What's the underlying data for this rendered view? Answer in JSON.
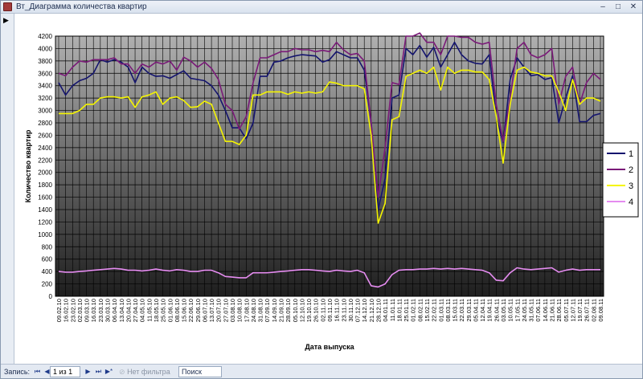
{
  "window": {
    "title": "Вт_Диаграмма количества квартир",
    "minimize_glyph": "–",
    "maximize_glyph": "□",
    "close_glyph": "✕"
  },
  "record_selector": {
    "glyph": "▶"
  },
  "navigation": {
    "record_label": "Запись:",
    "first_glyph": "⏮",
    "prev_glyph": "◀",
    "record_value": "1 из 1",
    "next_glyph": "▶",
    "last_glyph": "⏭",
    "new_glyph": "▶*",
    "filter_label": "Нет фильтра",
    "search_label": "Поиск"
  },
  "colors": {
    "series_1": "#14146e",
    "series_2": "#7a1a78",
    "series_3": "#f5f500",
    "series_4": "#e58cf0",
    "plot_top": "#b0b0b0",
    "plot_bottom": "#1e1e1e"
  },
  "chart_data": {
    "type": "line",
    "title": "",
    "xlabel": "Дата выпуска",
    "ylabel": "Количество квартир",
    "ylim": [
      0,
      4200
    ],
    "y_ticks": [
      "0",
      "200",
      "400",
      "600",
      "800",
      "1000",
      "1200",
      "1400",
      "1600",
      "1800",
      "2000",
      "2200",
      "2400",
      "2600",
      "2800",
      "3000",
      "3200",
      "3400",
      "3600",
      "3800",
      "4000",
      "4200"
    ],
    "grid": true,
    "legend_position": "right",
    "x": [
      "09.02.10",
      "16.02.10",
      "23.02.10",
      "02.03.10",
      "09.03.10",
      "16.03.10",
      "23.03.10",
      "30.03.10",
      "06.04.10",
      "13.04.10",
      "20.04.10",
      "27.04.10",
      "04.05.10",
      "11.05.10",
      "18.05.10",
      "25.05.10",
      "01.06.10",
      "08.06.10",
      "15.06.10",
      "22.06.10",
      "29.06.10",
      "06.07.10",
      "13.07.10",
      "20.07.10",
      "27.07.10",
      "03.08.10",
      "10.08.10",
      "17.08.10",
      "24.08.10",
      "31.08.10",
      "07.09.10",
      "14.09.10",
      "21.09.10",
      "28.09.10",
      "05.10.10",
      "12.10.10",
      "19.10.10",
      "26.10.10",
      "02.11.10",
      "09.11.10",
      "16.11.10",
      "23.11.10",
      "30.11.10",
      "07.12.10",
      "14.12.10",
      "21.12.10",
      "28.12.10",
      "04.01.11",
      "11.01.11",
      "18.01.11",
      "25.01.11",
      "01.02.11",
      "08.02.11",
      "15.02.11",
      "22.02.11",
      "01.03.11",
      "08.03.11",
      "15.03.11",
      "22.03.11",
      "29.03.11",
      "05.04.11",
      "12.04.11",
      "19.04.11",
      "26.04.11",
      "03.05.11",
      "10.05.11",
      "17.05.11",
      "24.05.11",
      "31.05.11",
      "07.06.11",
      "14.06.11",
      "21.06.11",
      "28.06.11",
      "05.07.11",
      "12.07.11",
      "19.07.11",
      "26.07.11",
      "02.08.11",
      "09.08.11"
    ],
    "x_tick_labels": [
      "09.02.10",
      "16.02.10",
      "23.02.10",
      "02.03.10",
      "09.03.10",
      "16.03.10",
      "23.03.10",
      "30.03.10",
      "06.04.10",
      "13.04.10",
      "20.04.10",
      "27.04.10",
      "04.05.10",
      "11.05.10",
      "18.05.10",
      "25.05.10",
      "01.06.10",
      "08.06.10",
      "15.06.10",
      "22.06.10",
      "29.06.10",
      "06.07.10",
      "13.07.10",
      "20.07.10",
      "27.07.10",
      "03.08.10",
      "10.08.10",
      "17.08.10",
      "24.08.10",
      "31.08.10",
      "07.09.10",
      "14.09.10",
      "21.09.10",
      "28.09.10",
      "05.10.10",
      "12.10.10",
      "19.10.10",
      "26.10.10",
      "02.11.10",
      "09.11.10",
      "16.11.10",
      "23.11.10",
      "30.11.10",
      "07.12.10",
      "14.12.10",
      "21.12.10",
      "28.12.10",
      "04.01.11",
      "11.01.11",
      "18.01.11",
      "25.01.11",
      "01.02.11",
      "08.02.11",
      "15.02.11",
      "22.02.11",
      "01.03.11",
      "08.03.11",
      "15.03.11",
      "22.03.11",
      "29.03.11",
      "05.04.11",
      "12.04.11",
      "19.04.11",
      "26.04.11",
      "03.05.11",
      "10.05.11",
      "17.05.11",
      "24.05.11",
      "31.05.11",
      "07.06.11",
      "14.06.11",
      "21.06.11",
      "28.06.11",
      "05.07.11",
      "12.07.11",
      "19.07.11",
      "26.07.11",
      "02.08.11",
      "09.08.11"
    ],
    "series": [
      {
        "name": "1",
        "values": [
          3450,
          3250,
          3400,
          3480,
          3520,
          3600,
          3820,
          3780,
          3820,
          3780,
          3700,
          3450,
          3700,
          3600,
          3550,
          3560,
          3520,
          3580,
          3640,
          3520,
          3500,
          3480,
          3400,
          3250,
          3000,
          2720,
          2720,
          2540,
          2800,
          3550,
          3550,
          3780,
          3800,
          3850,
          3880,
          3900,
          3890,
          3880,
          3780,
          3820,
          3950,
          3900,
          3850,
          3850,
          3650,
          2800,
          1400,
          1900,
          3200,
          3250,
          4000,
          3900,
          4050,
          3860,
          4020,
          3700,
          3900,
          4100,
          3900,
          3800,
          3760,
          3750,
          3900,
          2900,
          2480,
          3500,
          3850,
          3700,
          3560,
          3580,
          3500,
          3530,
          2800,
          3200,
          3560,
          2820,
          2820,
          2920,
          2950
        ]
      },
      {
        "name": "2",
        "values": [
          3600,
          3560,
          3700,
          3800,
          3780,
          3820,
          3820,
          3820,
          3850,
          3750,
          3750,
          3600,
          3750,
          3700,
          3780,
          3750,
          3800,
          3650,
          3860,
          3800,
          3700,
          3780,
          3680,
          3500,
          3100,
          3000,
          2700,
          2900,
          3450,
          3850,
          3850,
          3900,
          3950,
          3950,
          4000,
          3980,
          3980,
          3950,
          3970,
          3950,
          4100,
          3980,
          3900,
          3920,
          3800,
          2800,
          1600,
          2400,
          3450,
          3420,
          4200,
          4200,
          4250,
          4100,
          4100,
          3900,
          4200,
          4200,
          4180,
          4180,
          4100,
          4070,
          4100,
          3100,
          2500,
          3200,
          4000,
          4100,
          3900,
          3850,
          3900,
          4000,
          3100,
          3550,
          3700,
          3100,
          3450,
          3600,
          3500
        ]
      },
      {
        "name": "3",
        "values": [
          2950,
          2950,
          2950,
          3000,
          3100,
          3100,
          3200,
          3220,
          3220,
          3200,
          3220,
          3050,
          3220,
          3250,
          3300,
          3100,
          3200,
          3220,
          3160,
          3050,
          3060,
          3150,
          3100,
          2800,
          2500,
          2500,
          2450,
          2600,
          3250,
          3250,
          3300,
          3300,
          3300,
          3260,
          3300,
          3280,
          3300,
          3280,
          3300,
          3460,
          3440,
          3400,
          3400,
          3400,
          3350,
          2600,
          1180,
          1500,
          2850,
          2900,
          3550,
          3600,
          3650,
          3600,
          3700,
          3330,
          3700,
          3600,
          3650,
          3650,
          3620,
          3620,
          3500,
          2900,
          2150,
          3100,
          3650,
          3700,
          3620,
          3600,
          3560,
          3560,
          3300,
          3000,
          3500,
          3100,
          3200,
          3200,
          3150
        ]
      },
      {
        "name": "4",
        "values": [
          400,
          390,
          390,
          400,
          410,
          420,
          430,
          440,
          450,
          440,
          420,
          420,
          410,
          420,
          440,
          420,
          410,
          430,
          420,
          400,
          400,
          420,
          420,
          380,
          320,
          310,
          300,
          300,
          380,
          380,
          380,
          390,
          400,
          410,
          420,
          430,
          430,
          420,
          410,
          400,
          420,
          410,
          400,
          420,
          380,
          170,
          150,
          200,
          350,
          420,
          430,
          430,
          440,
          440,
          450,
          440,
          450,
          440,
          450,
          440,
          430,
          420,
          380,
          260,
          250,
          380,
          460,
          440,
          430,
          440,
          450,
          460,
          390,
          420,
          440,
          420,
          430,
          430,
          430
        ]
      }
    ]
  }
}
